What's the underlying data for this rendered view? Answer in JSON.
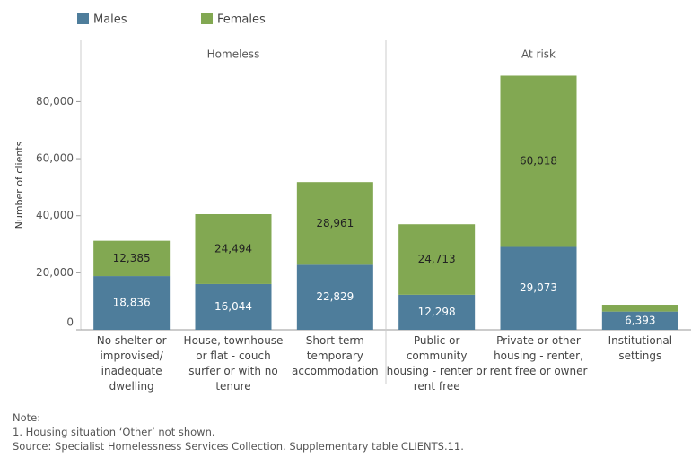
{
  "chart_data": {
    "type": "bar",
    "stacked": true,
    "y_label": "Number of clients",
    "panels": [
      {
        "name": "Homeless",
        "categories": [
          "No shelter or improvised/ inadequate dwelling",
          "House, townhouse or flat - couch surfer or with no tenure",
          "Short-term temporary accommodation"
        ]
      },
      {
        "name": "At risk",
        "categories": [
          "Public or community housing - renter or rent free",
          "Private or other housing - renter, rent free or owner",
          "Institutional settings"
        ]
      }
    ],
    "series": [
      {
        "name": "Males",
        "color": "#4e7d9b",
        "values": [
          18836,
          16044,
          22829,
          12298,
          29073,
          6393
        ],
        "value_labels": [
          "18,836",
          "16,044",
          "22,829",
          "12,298",
          "29,073",
          "6,393"
        ]
      },
      {
        "name": "Females",
        "color": "#82a852",
        "values": [
          12385,
          24494,
          28961,
          24713,
          60018,
          2400
        ],
        "value_labels": [
          "12,385",
          "24,494",
          "28,961",
          "24,713",
          "60,018",
          null
        ]
      }
    ],
    "ylim": [
      0,
      101500
    ],
    "yticks": [
      0,
      {
        "value": 20000,
        "label": "20,000"
      },
      {
        "value": 40000,
        "label": "40,000"
      },
      {
        "value": 60000,
        "label": "60,000"
      },
      {
        "value": 80000,
        "label": "80,000"
      }
    ],
    "notes": [
      "Note:",
      "1. Housing situation ‘Other’ not shown.",
      "Source: Specialist Homelessness Services Collection. Supplementary table CLIENTS.11."
    ]
  }
}
